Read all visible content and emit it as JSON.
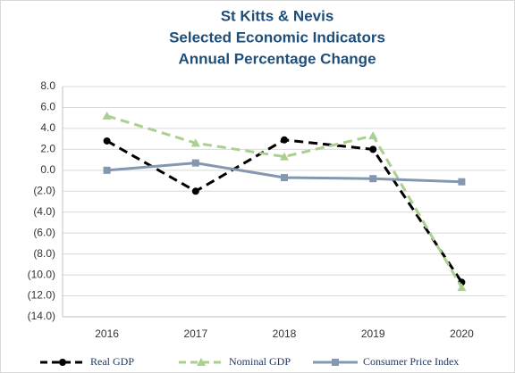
{
  "chart_data": {
    "type": "line",
    "title": [
      "St Kitts & Nevis",
      "Selected Economic Indicators",
      "Annual Percentage Change"
    ],
    "categories": [
      "2016",
      "2017",
      "2018",
      "2019",
      "2020"
    ],
    "series": [
      {
        "name": "Real GDP",
        "color": "#000000",
        "marker": "circle",
        "dashed": true,
        "values": [
          2.8,
          -2.0,
          2.9,
          2.0,
          -10.7
        ]
      },
      {
        "name": "Nominal GDP",
        "color": "#a9d08e",
        "marker": "triangle",
        "dashed": true,
        "values": [
          5.2,
          2.6,
          1.3,
          3.3,
          -11.2
        ]
      },
      {
        "name": "Consumer Price Index",
        "color": "#8497b0",
        "marker": "square",
        "dashed": false,
        "values": [
          0.0,
          0.7,
          -0.7,
          -0.8,
          -1.1
        ]
      }
    ],
    "ylim": [
      -14,
      8
    ],
    "yticks": [
      {
        "value": 8,
        "label": "8.0"
      },
      {
        "value": 6,
        "label": "6.0"
      },
      {
        "value": 4,
        "label": "4.0"
      },
      {
        "value": 2,
        "label": "2.0"
      },
      {
        "value": 0,
        "label": "0.0"
      },
      {
        "value": -2,
        "label": "(2.0)"
      },
      {
        "value": -4,
        "label": "(4.0)"
      },
      {
        "value": -6,
        "label": "(6.0)"
      },
      {
        "value": -8,
        "label": "(8.0)"
      },
      {
        "value": -10,
        "label": "(10.0)"
      },
      {
        "value": -12,
        "label": "(12.0)"
      },
      {
        "value": -14,
        "label": "(14.0)"
      }
    ],
    "grid": true,
    "legend": "bottom"
  }
}
